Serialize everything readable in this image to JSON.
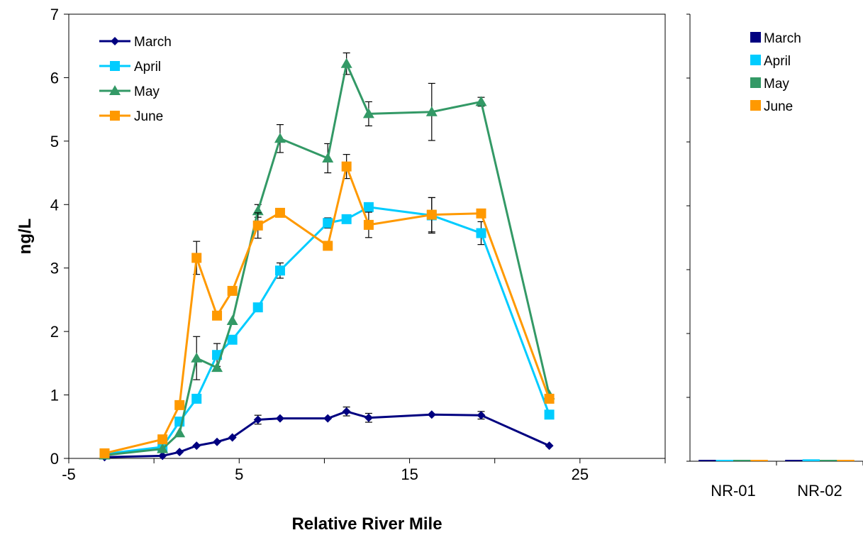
{
  "chart_data": [
    {
      "type": "line",
      "title": "",
      "xlabel": "Relative River Mile",
      "ylabel": "ng/L",
      "xlim": [
        -5,
        30
      ],
      "ylim": [
        0,
        7
      ],
      "x_ticks": [
        "-5",
        "5",
        "15",
        "25"
      ],
      "y_ticks": [
        "0",
        "1",
        "2",
        "3",
        "4",
        "5",
        "6",
        "7"
      ],
      "grid": false,
      "legend_position": "top-left",
      "series": [
        {
          "name": "March",
          "color": "#000080",
          "marker": "diamond",
          "points": [
            {
              "x": -2.9,
              "y": 0.02
            },
            {
              "x": 0.5,
              "y": 0.04
            },
            {
              "x": 1.5,
              "y": 0.1
            },
            {
              "x": 2.5,
              "y": 0.2
            },
            {
              "x": 3.7,
              "y": 0.26
            },
            {
              "x": 4.6,
              "y": 0.33
            },
            {
              "x": 6.1,
              "y": 0.61,
              "err": 0.07
            },
            {
              "x": 7.4,
              "y": 0.63
            },
            {
              "x": 10.2,
              "y": 0.63
            },
            {
              "x": 11.3,
              "y": 0.74,
              "err": 0.07
            },
            {
              "x": 12.6,
              "y": 0.64,
              "err": 0.07
            },
            {
              "x": 16.3,
              "y": 0.69
            },
            {
              "x": 19.2,
              "y": 0.68,
              "err": 0.06
            },
            {
              "x": 23.2,
              "y": 0.2
            }
          ]
        },
        {
          "name": "April",
          "color": "#00CCFF",
          "marker": "square",
          "points": [
            {
              "x": -2.9,
              "y": 0.07
            },
            {
              "x": 0.5,
              "y": 0.18
            },
            {
              "x": 1.5,
              "y": 0.58
            },
            {
              "x": 2.5,
              "y": 0.94
            },
            {
              "x": 3.7,
              "y": 1.63,
              "err": 0.18
            },
            {
              "x": 4.6,
              "y": 1.87
            },
            {
              "x": 6.1,
              "y": 2.38
            },
            {
              "x": 7.4,
              "y": 2.96,
              "err": 0.12
            },
            {
              "x": 10.2,
              "y": 3.71,
              "err": 0.08
            },
            {
              "x": 11.3,
              "y": 3.77
            },
            {
              "x": 12.6,
              "y": 3.96
            },
            {
              "x": 16.3,
              "y": 3.83,
              "err": 0.28
            },
            {
              "x": 19.2,
              "y": 3.55,
              "err": 0.18
            },
            {
              "x": 23.2,
              "y": 0.69
            }
          ]
        },
        {
          "name": "May",
          "color": "#339966",
          "marker": "triangle",
          "points": [
            {
              "x": -2.9,
              "y": 0.05
            },
            {
              "x": 0.5,
              "y": 0.15
            },
            {
              "x": 1.5,
              "y": 0.4
            },
            {
              "x": 2.5,
              "y": 1.58,
              "err": 0.34
            },
            {
              "x": 3.7,
              "y": 1.43
            },
            {
              "x": 4.6,
              "y": 2.17
            },
            {
              "x": 6.1,
              "y": 3.9,
              "err": 0.1
            },
            {
              "x": 7.4,
              "y": 5.04,
              "err": 0.22
            },
            {
              "x": 10.2,
              "y": 4.73,
              "err": 0.23
            },
            {
              "x": 11.3,
              "y": 6.22,
              "err": 0.17
            },
            {
              "x": 12.6,
              "y": 5.43,
              "err": 0.19
            },
            {
              "x": 16.3,
              "y": 5.46,
              "err": 0.45
            },
            {
              "x": 19.2,
              "y": 5.62,
              "err": 0.07
            },
            {
              "x": 23.2,
              "y": 1.0
            }
          ]
        },
        {
          "name": "June",
          "color": "#FF9900",
          "marker": "square",
          "points": [
            {
              "x": -2.9,
              "y": 0.08
            },
            {
              "x": 0.5,
              "y": 0.3
            },
            {
              "x": 1.5,
              "y": 0.84
            },
            {
              "x": 2.5,
              "y": 3.16,
              "err": 0.26
            },
            {
              "x": 3.7,
              "y": 2.25
            },
            {
              "x": 4.6,
              "y": 2.64
            },
            {
              "x": 6.1,
              "y": 3.67,
              "err": 0.2
            },
            {
              "x": 7.4,
              "y": 3.87
            },
            {
              "x": 10.2,
              "y": 3.35
            },
            {
              "x": 11.3,
              "y": 4.6,
              "err": 0.19
            },
            {
              "x": 12.6,
              "y": 3.68,
              "err": 0.2
            },
            {
              "x": 16.3,
              "y": 3.84,
              "err": 0.27
            },
            {
              "x": 19.2,
              "y": 3.86
            },
            {
              "x": 23.2,
              "y": 0.94
            }
          ]
        }
      ]
    },
    {
      "type": "bar",
      "title": "",
      "xlabel": "",
      "ylabel": "",
      "categories": [
        "NR-01",
        "NR-02"
      ],
      "ylim": [
        0,
        7
      ],
      "grid": false,
      "legend_position": "top-right",
      "series": [
        {
          "name": "March",
          "color": "#000080",
          "values": [
            0.0,
            0.01
          ]
        },
        {
          "name": "April",
          "color": "#00CCFF",
          "values": [
            0.02,
            0.03
          ]
        },
        {
          "name": "May",
          "color": "#339966",
          "values": [
            0.01,
            0.02
          ]
        },
        {
          "name": "June",
          "color": "#FF9900",
          "values": [
            0.02,
            0.01
          ]
        }
      ]
    }
  ]
}
